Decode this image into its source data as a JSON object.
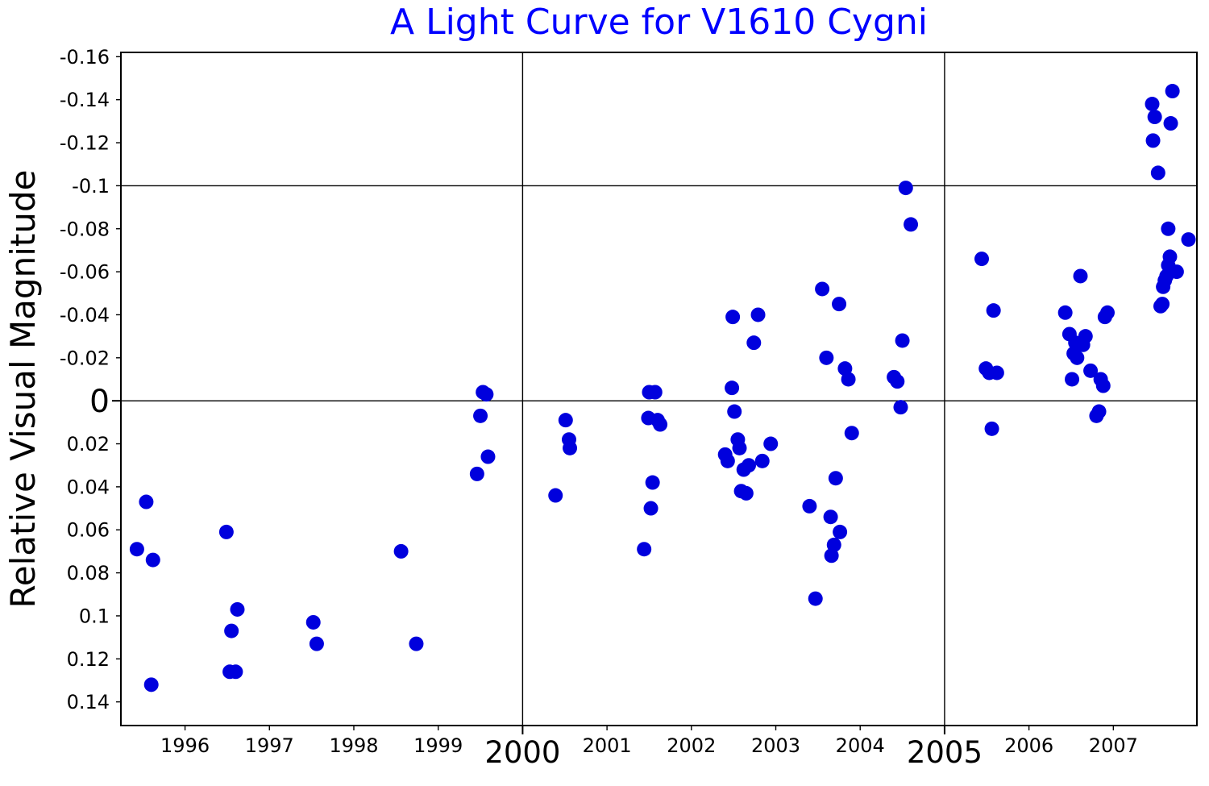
{
  "chart_data": {
    "type": "scatter",
    "title": "A Light Curve for V1610 Cygni",
    "title_color": "#0000ff",
    "xlabel": "",
    "ylabel": "Relative Visual Magnitude",
    "x_range": [
      1995.24,
      2007.99
    ],
    "y_range": [
      -0.162,
      0.151
    ],
    "y_axis_inverted": true,
    "grid_on": true,
    "legend_position": "none",
    "marker": {
      "shape": "circle",
      "color": "#0000dd",
      "radius_px": 9
    },
    "axis_color": "#000000",
    "grid": {
      "x": [
        2000,
        2005
      ],
      "y": [
        -0.1,
        0
      ]
    },
    "x_ticks": [
      {
        "v": 1996,
        "label": "1996",
        "major": false
      },
      {
        "v": 1997,
        "label": "1997",
        "major": false
      },
      {
        "v": 1998,
        "label": "1998",
        "major": false
      },
      {
        "v": 1999,
        "label": "1999",
        "major": false
      },
      {
        "v": 2000,
        "label": "2000",
        "major": true
      },
      {
        "v": 2001,
        "label": "2001",
        "major": false
      },
      {
        "v": 2002,
        "label": "2002",
        "major": false
      },
      {
        "v": 2003,
        "label": "2003",
        "major": false
      },
      {
        "v": 2004,
        "label": "2004",
        "major": false
      },
      {
        "v": 2005,
        "label": "2005",
        "major": true
      },
      {
        "v": 2006,
        "label": "2006",
        "major": false
      },
      {
        "v": 2007,
        "label": "2007",
        "major": false
      }
    ],
    "y_ticks": [
      {
        "v": -0.16,
        "label": "-0.16",
        "major": false
      },
      {
        "v": -0.14,
        "label": "-0.14",
        "major": false
      },
      {
        "v": -0.12,
        "label": "-0.12",
        "major": false
      },
      {
        "v": -0.1,
        "label": "-0.1",
        "major": false
      },
      {
        "v": -0.08,
        "label": "-0.08",
        "major": false
      },
      {
        "v": -0.06,
        "label": "-0.06",
        "major": false
      },
      {
        "v": -0.04,
        "label": "-0.04",
        "major": false
      },
      {
        "v": -0.02,
        "label": "-0.02",
        "major": false
      },
      {
        "v": 0,
        "label": "0",
        "major": true
      },
      {
        "v": 0.02,
        "label": "0.02",
        "major": false
      },
      {
        "v": 0.04,
        "label": "0.04",
        "major": false
      },
      {
        "v": 0.06,
        "label": "0.06",
        "major": false
      },
      {
        "v": 0.08,
        "label": "0.08",
        "major": false
      },
      {
        "v": 0.1,
        "label": "0.1",
        "major": false
      },
      {
        "v": 0.12,
        "label": "0.12",
        "major": false
      },
      {
        "v": 0.14,
        "label": "0.14",
        "major": false
      }
    ],
    "points": [
      [
        1995.43,
        0.069
      ],
      [
        1995.54,
        0.047
      ],
      [
        1995.6,
        0.132
      ],
      [
        1995.62,
        0.074
      ],
      [
        1996.49,
        0.061
      ],
      [
        1996.53,
        0.126
      ],
      [
        1996.55,
        0.107
      ],
      [
        1996.6,
        0.126
      ],
      [
        1996.62,
        0.097
      ],
      [
        1997.52,
        0.103
      ],
      [
        1997.56,
        0.113
      ],
      [
        1998.56,
        0.07
      ],
      [
        1998.74,
        0.113
      ],
      [
        1999.46,
        0.034
      ],
      [
        1999.5,
        0.007
      ],
      [
        1999.53,
        -0.004
      ],
      [
        1999.57,
        -0.003
      ],
      [
        1999.59,
        0.026
      ],
      [
        2000.39,
        0.044
      ],
      [
        2000.51,
        0.009
      ],
      [
        2000.55,
        0.018
      ],
      [
        2000.56,
        0.022
      ],
      [
        2001.44,
        0.069
      ],
      [
        2001.49,
        0.008
      ],
      [
        2001.5,
        -0.004
      ],
      [
        2001.52,
        0.05
      ],
      [
        2001.54,
        0.038
      ],
      [
        2001.57,
        -0.004
      ],
      [
        2001.6,
        0.009
      ],
      [
        2001.63,
        0.011
      ],
      [
        2002.4,
        0.025
      ],
      [
        2002.43,
        0.028
      ],
      [
        2002.48,
        -0.006
      ],
      [
        2002.49,
        -0.039
      ],
      [
        2002.51,
        0.005
      ],
      [
        2002.55,
        0.018
      ],
      [
        2002.57,
        0.022
      ],
      [
        2002.59,
        0.042
      ],
      [
        2002.62,
        0.032
      ],
      [
        2002.65,
        0.043
      ],
      [
        2002.68,
        0.03
      ],
      [
        2002.74,
        -0.027
      ],
      [
        2002.79,
        -0.04
      ],
      [
        2002.84,
        0.028
      ],
      [
        2002.94,
        0.02
      ],
      [
        2003.4,
        0.049
      ],
      [
        2003.47,
        0.092
      ],
      [
        2003.55,
        -0.052
      ],
      [
        2003.6,
        -0.02
      ],
      [
        2003.65,
        0.054
      ],
      [
        2003.66,
        0.072
      ],
      [
        2003.69,
        0.067
      ],
      [
        2003.71,
        0.036
      ],
      [
        2003.75,
        -0.045
      ],
      [
        2003.76,
        0.061
      ],
      [
        2003.82,
        -0.015
      ],
      [
        2003.86,
        -0.01
      ],
      [
        2003.9,
        0.015
      ],
      [
        2004.4,
        -0.011
      ],
      [
        2004.44,
        -0.009
      ],
      [
        2004.48,
        0.003
      ],
      [
        2004.5,
        -0.028
      ],
      [
        2004.54,
        -0.099
      ],
      [
        2004.6,
        -0.082
      ],
      [
        2005.44,
        -0.066
      ],
      [
        2005.49,
        -0.015
      ],
      [
        2005.53,
        -0.013
      ],
      [
        2005.56,
        0.013
      ],
      [
        2005.58,
        -0.042
      ],
      [
        2005.62,
        -0.013
      ],
      [
        2006.43,
        -0.041
      ],
      [
        2006.48,
        -0.031
      ],
      [
        2006.51,
        -0.01
      ],
      [
        2006.53,
        -0.022
      ],
      [
        2006.55,
        -0.027
      ],
      [
        2006.57,
        -0.02
      ],
      [
        2006.61,
        -0.058
      ],
      [
        2006.64,
        -0.026
      ],
      [
        2006.67,
        -0.03
      ],
      [
        2006.73,
        -0.014
      ],
      [
        2006.8,
        0.007
      ],
      [
        2006.83,
        0.005
      ],
      [
        2006.85,
        -0.01
      ],
      [
        2006.88,
        -0.007
      ],
      [
        2006.9,
        -0.039
      ],
      [
        2006.93,
        -0.041
      ],
      [
        2007.46,
        -0.138
      ],
      [
        2007.47,
        -0.121
      ],
      [
        2007.49,
        -0.132
      ],
      [
        2007.53,
        -0.106
      ],
      [
        2007.56,
        -0.044
      ],
      [
        2007.58,
        -0.045
      ],
      [
        2007.59,
        -0.053
      ],
      [
        2007.61,
        -0.056
      ],
      [
        2007.63,
        -0.058
      ],
      [
        2007.65,
        -0.063
      ],
      [
        2007.65,
        -0.08
      ],
      [
        2007.67,
        -0.067
      ],
      [
        2007.68,
        -0.129
      ],
      [
        2007.7,
        -0.144
      ],
      [
        2007.75,
        -0.06
      ],
      [
        2007.89,
        -0.075
      ]
    ]
  }
}
